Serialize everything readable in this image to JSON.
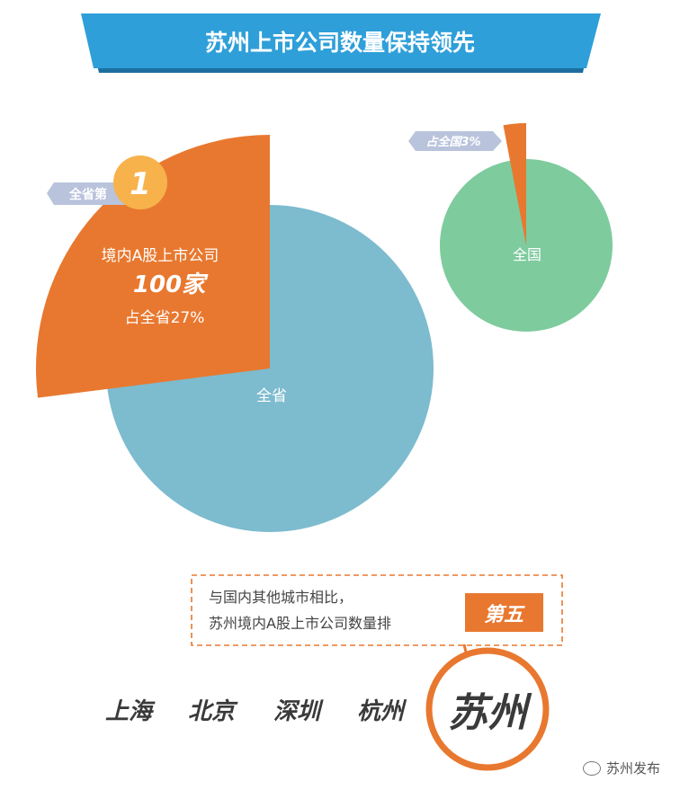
{
  "header": {
    "title": "苏州上市公司数量保持领先"
  },
  "province": {
    "rank_prefix": "全省第",
    "rank_number": "1",
    "line1": "境内A股上市公司",
    "count": "100家",
    "share_text": "占全省27%",
    "pie_label": "全省"
  },
  "nation": {
    "pie_label": "全国",
    "share_tag": "占全国3%"
  },
  "ranking": {
    "note_line1": "与国内其他城市相比，",
    "note_line2": "苏州境内A股上市公司数量排",
    "rank_badge": "第五",
    "cities": [
      "上海",
      "北京",
      "深圳",
      "杭州",
      "苏州"
    ]
  },
  "watermark": {
    "text": "苏州发布"
  },
  "chart_data": [
    {
      "type": "pie",
      "title": "",
      "slices": [
        {
          "label": "苏州",
          "value": 27
        },
        {
          "label": "全省",
          "value": 73
        }
      ],
      "colors": {
        "highlight": "#E8782F",
        "base": "#7DBBCF"
      }
    },
    {
      "type": "pie",
      "title": "",
      "slices": [
        {
          "label": "苏州",
          "value": 3
        },
        {
          "label": "全国",
          "value": 97
        }
      ],
      "colors": {
        "highlight": "#E8782F",
        "base": "#7ECB9E"
      }
    }
  ],
  "colors": {
    "banner": "#2E9FD9",
    "banner_dark": "#1D6E9E",
    "orange": "#E8782F",
    "tag_bg": "#B9C3DC",
    "gold": "#F7B24C",
    "city_text": "#3a3a3a"
  }
}
